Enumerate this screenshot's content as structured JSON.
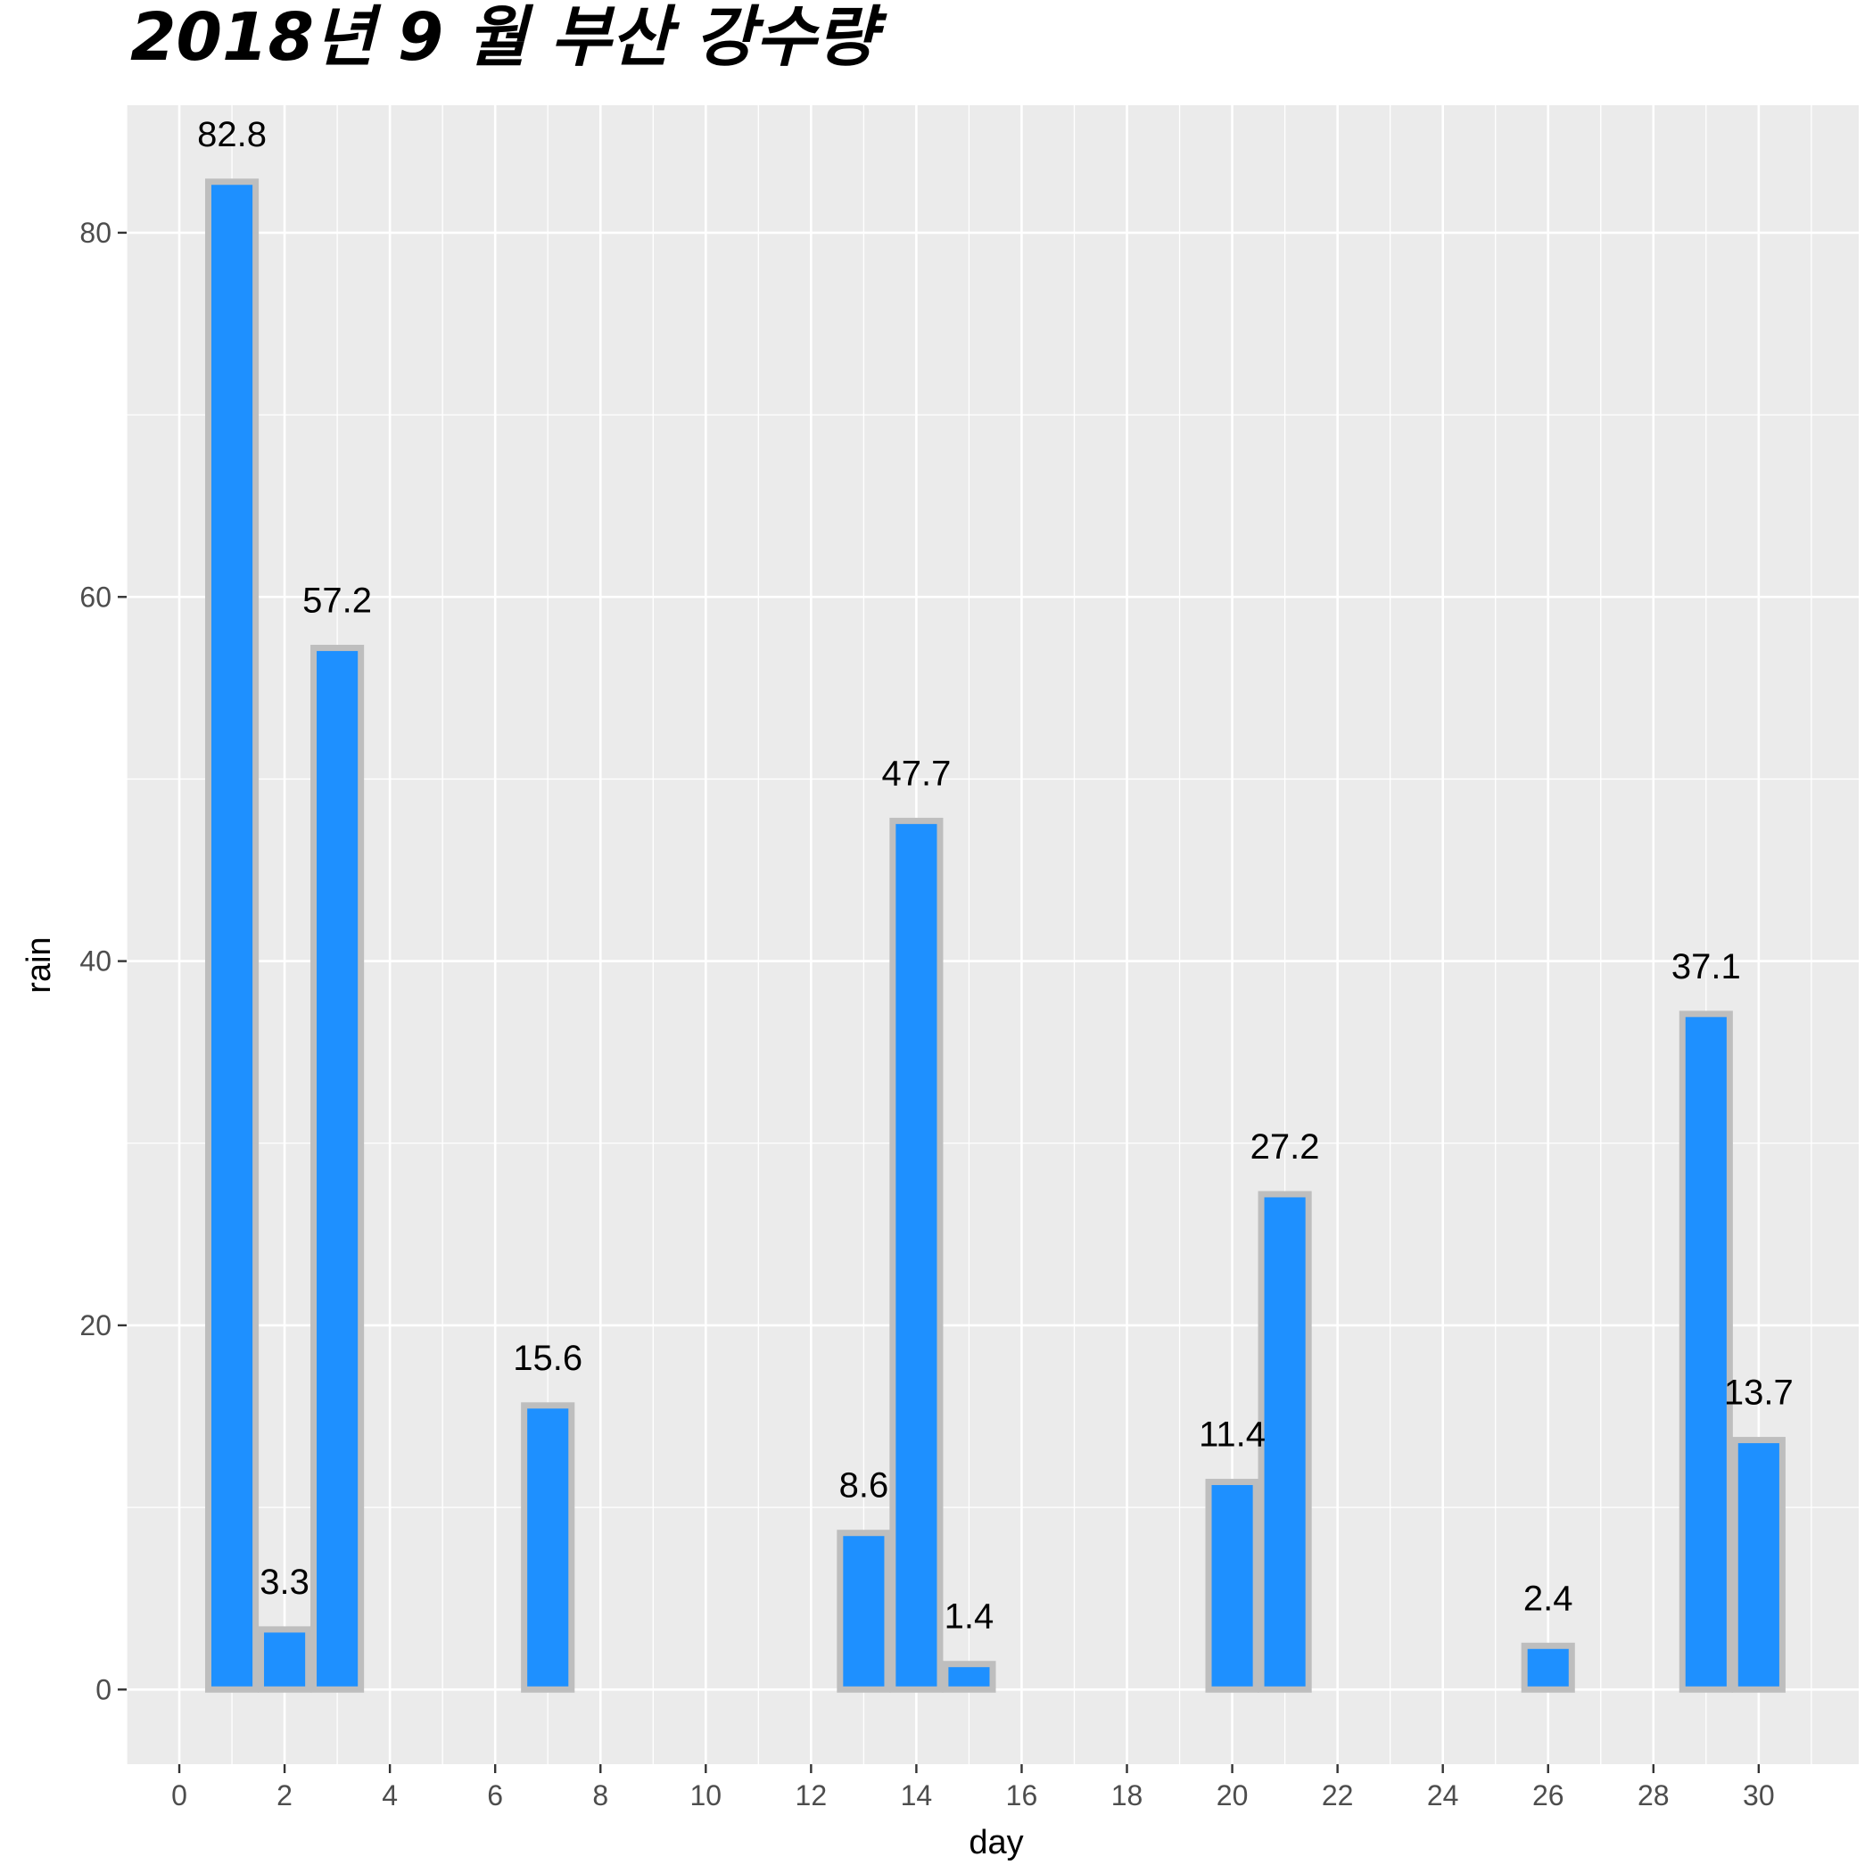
{
  "chart_data": {
    "type": "bar",
    "title": "2018년 9 월 부산 강수량",
    "xlabel": "day",
    "ylabel": "rain",
    "x": [
      1,
      2,
      3,
      7,
      13,
      14,
      15,
      20,
      21,
      26,
      29,
      30
    ],
    "values": [
      82.8,
      3.3,
      57.2,
      15.6,
      8.6,
      47.7,
      1.4,
      11.4,
      27.2,
      2.4,
      37.1,
      13.7
    ],
    "data_labels": [
      "82.8",
      "3.3",
      "57.2",
      "15.6",
      "8.6",
      "47.7",
      "1.4",
      "11.4",
      "27.2",
      "2.4",
      "37.1",
      "13.7"
    ],
    "xlim": [
      -1,
      31.9
    ],
    "ylim": [
      -4.1,
      87.0
    ],
    "x_ticks": [
      0,
      2,
      4,
      6,
      8,
      10,
      12,
      14,
      16,
      18,
      20,
      22,
      24,
      26,
      28,
      30
    ],
    "y_ticks": [
      0,
      20,
      40,
      60,
      80
    ],
    "grid": true,
    "legend": "none",
    "colors": {
      "bar_fill": "#1E90FF",
      "bar_outline": "#BEBEBE",
      "panel_background": "#EBEBEB",
      "grid": "#FFFFFF",
      "tick_text": "#4D4D4D"
    }
  }
}
